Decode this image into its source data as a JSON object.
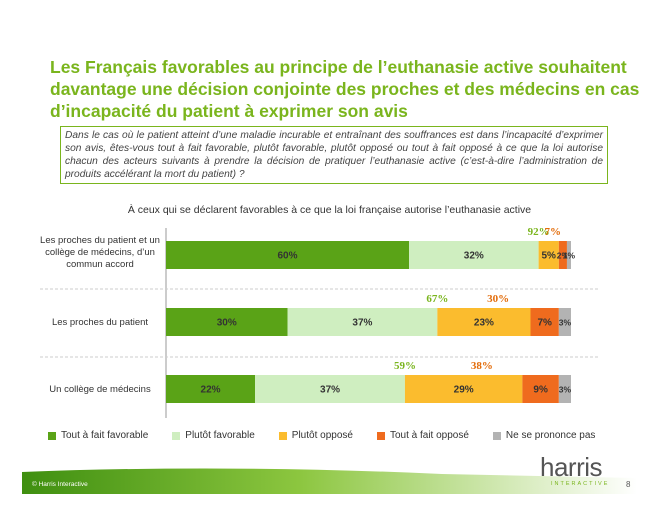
{
  "title": "Les Français favorables au principe de l’euthanasie active souhaitent davantage une décision conjointe des proches et des médecins en cas d’incapacité du patient à exprimer son avis",
  "question": "Dans le cas où le patient atteint d’une maladie incurable et entraînant des souffrances est dans l’incapacité d’exprimer son avis, êtes-vous tout à fait favorable, plutôt favorable, plutôt opposé ou tout à fait opposé à ce que la loi autorise chacun des acteurs suivants à prendre la décision de pratiquer l’euthanasie active (c’est-à-dire l’administration de produits accélérant la mort du patient) ?",
  "footer": {
    "copyright": "© Harris Interactive",
    "logo": "harris",
    "logo_sub": "INTERACTIVE",
    "page_number": "8"
  },
  "colors": {
    "title": "#7ab51d",
    "tout_fait_favorable": "#5aa317",
    "plutot_favorable": "#cfeec0",
    "plutot_oppose": "#fbbc2e",
    "tout_fait_oppose": "#ef6b1e",
    "ne_se_prononce_pas": "#b3b3b3",
    "total_favorable": "#7ab51d",
    "total_oppose": "#e36c0a"
  },
  "chart_data": {
    "type": "bar",
    "orientation": "horizontal",
    "stacked": true,
    "title": "À ceux qui se déclarent favorables à ce que la loi française autorise l’euthanasie active",
    "categories": [
      "Les proches du patient et un collège de médecins, d’un commun accord",
      "Les proches du patient",
      "Un collège de médecins"
    ],
    "series": [
      {
        "name": "Tout à fait favorable",
        "values": [
          60,
          30,
          22
        ],
        "labels": [
          "60%",
          "30%",
          "22%"
        ]
      },
      {
        "name": "Plutôt favorable",
        "values": [
          32,
          37,
          37
        ],
        "labels": [
          "32%",
          "37%",
          "37%"
        ]
      },
      {
        "name": "Plutôt opposé",
        "values": [
          5,
          23,
          29
        ],
        "labels": [
          "5%",
          "23%",
          "29%"
        ]
      },
      {
        "name": "Tout à fait opposé",
        "values": [
          2,
          7,
          9
        ],
        "labels": [
          "2%",
          "7%",
          "9%"
        ]
      },
      {
        "name": "Ne se prononce pas",
        "values": [
          1,
          3,
          3
        ],
        "labels": [
          "1%",
          "3%",
          "3%"
        ]
      }
    ],
    "totals_favorable": [
      "92%",
      "67%",
      "59%"
    ],
    "totals_oppose": [
      "7%",
      "30%",
      "38%"
    ],
    "xlim": [
      0,
      100
    ],
    "legend": "bottom",
    "grid": false
  }
}
